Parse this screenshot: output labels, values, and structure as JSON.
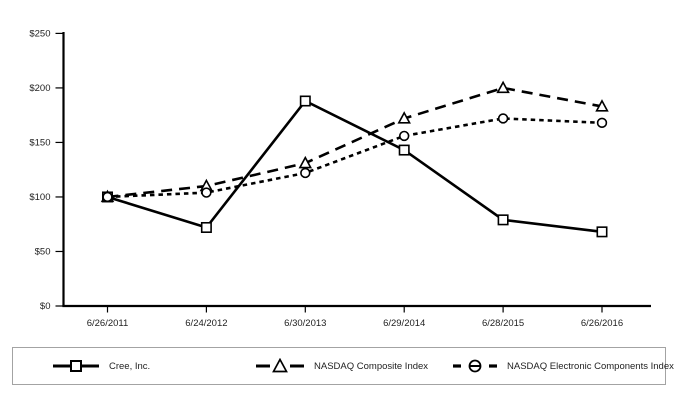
{
  "chart_data": {
    "type": "line",
    "title": "",
    "xlabel": "",
    "ylabel": "",
    "x_labels": [
      "6/26/2011",
      "6/24/2012",
      "6/30/2013",
      "6/29/2014",
      "6/28/2015",
      "6/26/2016"
    ],
    "y_ticks": [
      {
        "value": 0,
        "label": "$0"
      },
      {
        "value": 50,
        "label": "$50"
      },
      {
        "value": 100,
        "label": "$100"
      },
      {
        "value": 150,
        "label": "$150"
      },
      {
        "value": 200,
        "label": "$200"
      },
      {
        "value": 250,
        "label": "$250"
      }
    ],
    "ylim": [
      0,
      250
    ],
    "grid": false,
    "legend_position": "bottom",
    "axis_color": "#000000",
    "text_color": "#222222",
    "series": [
      {
        "name": "Cree, Inc.",
        "values": [
          100,
          72,
          188,
          143,
          79,
          68
        ],
        "line_style": "solid",
        "marker": "square-marker",
        "color": "#000000"
      },
      {
        "name": "NASDAQ Composite Index",
        "values": [
          100,
          110,
          131,
          172,
          200,
          183
        ],
        "line_style": "long-dash",
        "marker": "triangle-marker",
        "color": "#000000"
      },
      {
        "name": "NASDAQ Electronic Components Index",
        "values": [
          100,
          104,
          122,
          156,
          172,
          168
        ],
        "line_style": "short-dash",
        "marker": "circle-marker",
        "color": "#000000"
      }
    ]
  }
}
